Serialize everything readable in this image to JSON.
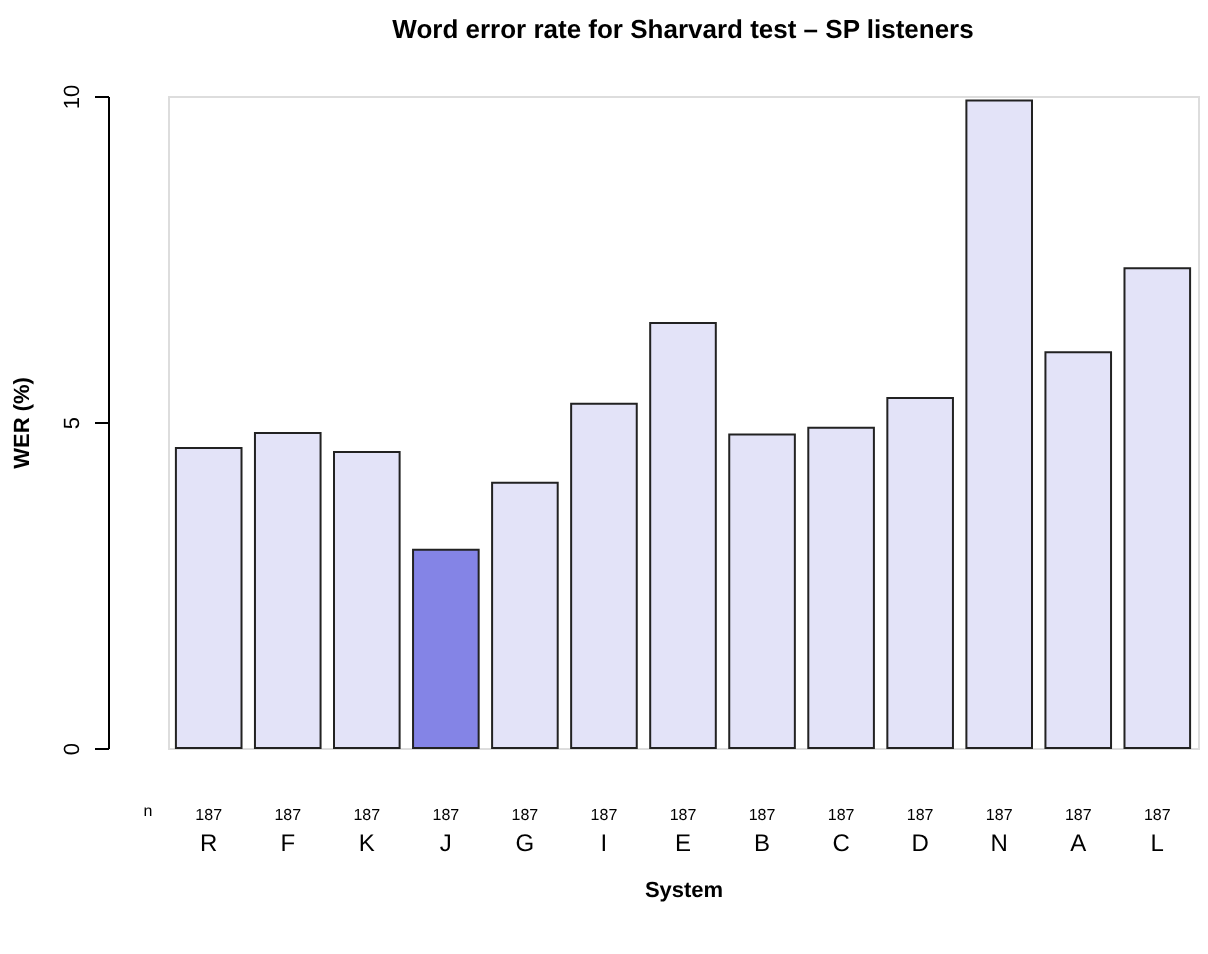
{
  "chart_data": {
    "type": "bar",
    "title": "Word error rate for Sharvard test – SP listeners",
    "xlabel": "System",
    "ylabel": "WER (%)",
    "categories": [
      "R",
      "F",
      "K",
      "J",
      "G",
      "I",
      "E",
      "B",
      "C",
      "D",
      "N",
      "A",
      "L"
    ],
    "values": [
      4.6,
      4.83,
      4.54,
      3.04,
      4.07,
      5.28,
      6.52,
      4.81,
      4.91,
      5.37,
      9.93,
      6.07,
      7.36
    ],
    "colors": [
      "#e3e3f8",
      "#e3e3f8",
      "#e3e3f8",
      "#8484e6",
      "#e3e3f8",
      "#e3e3f8",
      "#e3e3f8",
      "#e3e3f8",
      "#e3e3f8",
      "#e3e3f8",
      "#e3e3f8",
      "#e3e3f8",
      "#e3e3f8"
    ],
    "ylim": [
      0,
      10
    ],
    "yticks": [
      0,
      5,
      10
    ],
    "grid": false,
    "annotations": [
      "n",
      "187",
      "187",
      "187",
      "187",
      "187",
      "187",
      "187",
      "187",
      "187",
      "187",
      "187",
      "187",
      "187"
    ]
  }
}
